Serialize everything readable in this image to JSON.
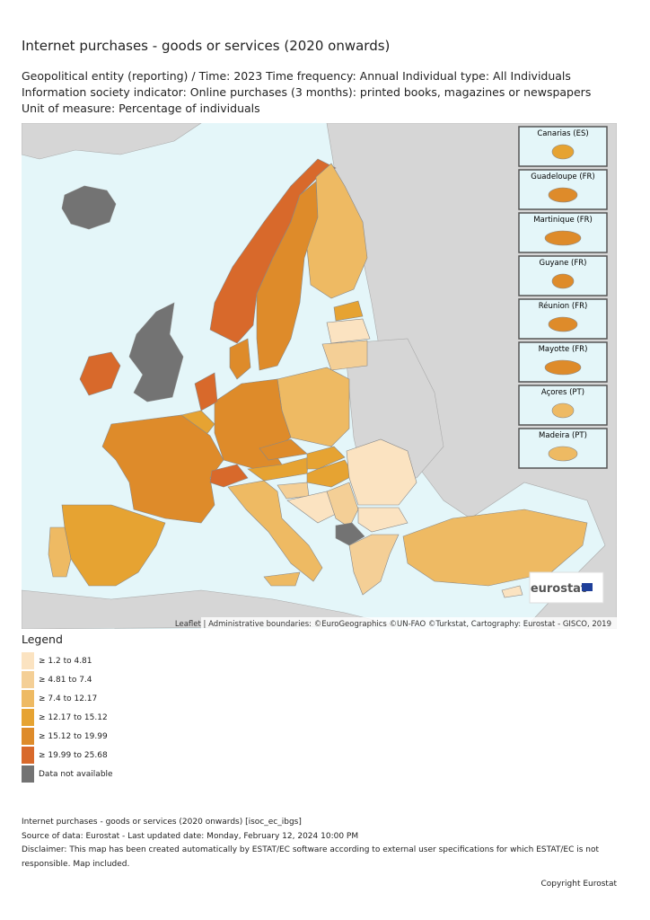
{
  "header": {
    "title": "Internet purchases - goods or services (2020 onwards)",
    "subtitle": "Geopolitical entity (reporting) / Time: 2023 Time frequency: Annual Individual type: All Individuals Information society indicator: Online purchases (3 months): printed books, magazines or newspapers Unit of measure: Percentage of individuals"
  },
  "map": {
    "insets": [
      "Canarias (ES)",
      "Guadeloupe (FR)",
      "Martinique (FR)",
      "Guyane (FR)",
      "Réunion (FR)",
      "Mayotte (FR)",
      "Açores (PT)",
      "Madeira (PT)"
    ],
    "logo": "eurostat",
    "attribution": "Leaflet | Administrative boundaries: ©EuroGeographics ©UN-FAO ©Turkstat, Cartography: Eurostat - GISCO, 2019"
  },
  "legend": {
    "title": "Legend",
    "items": [
      {
        "label": "≥ 1.2 to 4.81",
        "color": "#fbe3c1"
      },
      {
        "label": "≥ 4.81 to 7.4",
        "color": "#f4cf96"
      },
      {
        "label": "≥ 7.4 to 12.17",
        "color": "#eeba63"
      },
      {
        "label": "≥ 12.17 to 15.12",
        "color": "#e6a332"
      },
      {
        "label": "≥ 15.12 to 19.99",
        "color": "#de8b2a"
      },
      {
        "label": "≥ 19.99 to 25.68",
        "color": "#d8692b"
      },
      {
        "label": "Data not available",
        "color": "#737373"
      }
    ]
  },
  "footer": {
    "lines": [
      "Internet purchases - goods or services (2020 onwards) [isoc_ec_ibgs]",
      "Source of data: Eurostat - Last updated date: Monday, February 12, 2024 10:00 PM",
      "Disclaimer: This map has been created automatically by ESTAT/EC software according to external user specifications for which ESTAT/EC is not responsible. Map included."
    ],
    "copyright": "Copyright Eurostat"
  }
}
